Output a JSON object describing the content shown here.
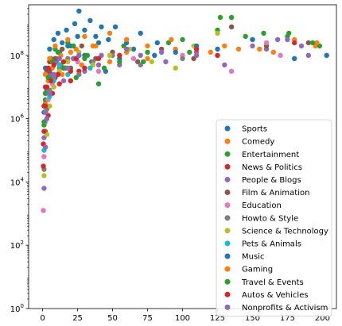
{
  "chart_data": {
    "type": "scatter",
    "title": "",
    "xlabel": "",
    "ylabel": "",
    "xlim": [
      -10,
      210
    ],
    "ylim_log10": [
      0,
      9.6
    ],
    "yscale": "log",
    "x_ticks": [
      0,
      25,
      50,
      75,
      100,
      125,
      150,
      175,
      200
    ],
    "x_tick_labels": [
      "0",
      "25",
      "50",
      "75",
      "100",
      "125",
      "150",
      "175",
      "200"
    ],
    "y_ticks_log10": [
      0,
      2,
      4,
      6,
      8
    ],
    "y_tick_labels": [
      {
        "base": "10",
        "exp": "0"
      },
      {
        "base": "10",
        "exp": "2"
      },
      {
        "base": "10",
        "exp": "4"
      },
      {
        "base": "10",
        "exp": "6"
      },
      {
        "base": "10",
        "exp": "8"
      }
    ],
    "grid": false,
    "legend_position": "lower-right",
    "series": [
      {
        "name": "Sports",
        "color": "#1f77b4",
        "points": [
          [
            1,
            6.2
          ],
          [
            3,
            6.9
          ],
          [
            5,
            7.3
          ],
          [
            8,
            7.7
          ],
          [
            12,
            8.1
          ],
          [
            15,
            7.6
          ],
          [
            18,
            8.3
          ],
          [
            22,
            7.9
          ],
          [
            25,
            8.6
          ],
          [
            30,
            8.0
          ],
          [
            35,
            7.8
          ],
          [
            40,
            8.4
          ],
          [
            45,
            7.5
          ],
          [
            55,
            7.9
          ],
          [
            65,
            8.2
          ],
          [
            80,
            8.0
          ]
        ]
      },
      {
        "name": "Comedy",
        "color": "#ff7f0e",
        "points": [
          [
            2,
            6.5
          ],
          [
            4,
            7.2
          ],
          [
            7,
            7.6
          ],
          [
            10,
            7.9
          ],
          [
            14,
            7.4
          ],
          [
            20,
            8.1
          ],
          [
            28,
            7.7
          ],
          [
            36,
            8.3
          ],
          [
            48,
            7.8
          ],
          [
            60,
            8.1
          ],
          [
            75,
            7.9
          ],
          [
            95,
            8.2
          ],
          [
            120,
            8.1
          ],
          [
            140,
            8.2
          ],
          [
            165,
            8.1
          ],
          [
            195,
            8.3
          ]
        ]
      },
      {
        "name": "Entertainment",
        "color": "#2ca02c",
        "points": [
          [
            1,
            5.8
          ],
          [
            2,
            6.6
          ],
          [
            4,
            7.4
          ],
          [
            6,
            7.9
          ],
          [
            9,
            8.2
          ],
          [
            13,
            7.7
          ],
          [
            18,
            8.4
          ],
          [
            24,
            7.3
          ],
          [
            32,
            8.0
          ],
          [
            44,
            7.6
          ],
          [
            58,
            8.3
          ],
          [
            72,
            7.8
          ],
          [
            90,
            8.4
          ],
          [
            105,
            8.1
          ],
          [
            125,
            8.8
          ],
          [
            150,
            8.5
          ],
          [
            175,
            8.6
          ],
          [
            198,
            8.3
          ]
        ]
      },
      {
        "name": "News & Politics",
        "color": "#d62728",
        "points": [
          [
            0.5,
            5.2
          ],
          [
            1,
            6.4
          ],
          [
            2,
            7.0
          ],
          [
            3,
            7.5
          ],
          [
            4,
            6.1
          ],
          [
            5,
            7.8
          ],
          [
            7,
            6.8
          ],
          [
            9,
            7.3
          ],
          [
            12,
            7.1
          ],
          [
            16,
            7.6
          ],
          [
            20,
            7.2
          ],
          [
            26,
            7.5
          ]
        ]
      },
      {
        "name": "People & Blogs",
        "color": "#9467bd",
        "points": [
          [
            1,
            5.4
          ],
          [
            2,
            6.2
          ],
          [
            4,
            6.9
          ],
          [
            6,
            7.4
          ],
          [
            10,
            7.8
          ],
          [
            15,
            7.2
          ],
          [
            22,
            7.9
          ],
          [
            30,
            7.5
          ],
          [
            42,
            8.0
          ],
          [
            55,
            7.7
          ],
          [
            70,
            8.0
          ],
          [
            88,
            7.8
          ],
          [
            110,
            8.1
          ],
          [
            130,
            7.7
          ],
          [
            160,
            8.2
          ],
          [
            185,
            8.3
          ]
        ]
      },
      {
        "name": "Film & Animation",
        "color": "#8c564b",
        "points": [
          [
            2,
            6.8
          ],
          [
            5,
            7.5
          ],
          [
            9,
            7.9
          ],
          [
            14,
            8.2
          ],
          [
            20,
            7.6
          ],
          [
            28,
            8.3
          ],
          [
            38,
            7.9
          ],
          [
            50,
            8.1
          ],
          [
            68,
            7.8
          ],
          [
            85,
            8.2
          ],
          [
            108,
            7.9
          ],
          [
            135,
            8.9
          ],
          [
            160,
            8.3
          ],
          [
            190,
            8.4
          ]
        ]
      },
      {
        "name": "Education",
        "color": "#e377c2",
        "points": [
          [
            0.5,
            3.1
          ],
          [
            1,
            4.8
          ],
          [
            2,
            5.9
          ],
          [
            4,
            6.6
          ],
          [
            7,
            7.1
          ],
          [
            11,
            7.4
          ],
          [
            17,
            7.6
          ],
          [
            25,
            7.8
          ],
          [
            40,
            7.5
          ],
          [
            65,
            7.9
          ],
          [
            100,
            8.0
          ],
          [
            135,
            7.5
          ],
          [
            160,
            8.4
          ],
          [
            170,
            8.0
          ]
        ]
      },
      {
        "name": "Howto & Style",
        "color": "#7f7f7f",
        "points": [
          [
            1,
            4.4
          ],
          [
            2,
            5.6
          ],
          [
            3,
            6.3
          ],
          [
            5,
            6.9
          ],
          [
            8,
            7.3
          ],
          [
            12,
            7.6
          ],
          [
            18,
            7.9
          ],
          [
            26,
            7.4
          ],
          [
            36,
            7.8
          ],
          [
            50,
            8.0
          ],
          [
            70,
            7.7
          ],
          [
            100,
            7.9
          ]
        ]
      },
      {
        "name": "Science & Technology",
        "color": "#bcbd22",
        "points": [
          [
            1,
            4.2
          ],
          [
            3,
            5.5
          ],
          [
            5,
            6.4
          ],
          [
            8,
            7.0
          ],
          [
            12,
            7.5
          ],
          [
            18,
            7.8
          ],
          [
            26,
            8.1
          ],
          [
            36,
            7.7
          ],
          [
            48,
            8.0
          ],
          [
            62,
            8.2
          ],
          [
            78,
            7.8
          ],
          [
            95,
            7.6
          ],
          [
            108,
            8.3
          ],
          [
            125,
            8.7
          ]
        ]
      },
      {
        "name": "Pets & Animals",
        "color": "#17becf",
        "points": [
          [
            1,
            5.0
          ],
          [
            3,
            6.0
          ],
          [
            5,
            6.7
          ],
          [
            8,
            7.2
          ],
          [
            12,
            7.7
          ],
          [
            18,
            7.4
          ],
          [
            26,
            8.0
          ],
          [
            34,
            7.6
          ]
        ]
      },
      {
        "name": "Music",
        "color": "#1f77b4",
        "points": [
          [
            2,
            7.6
          ],
          [
            5,
            8.2
          ],
          [
            8,
            8.5
          ],
          [
            11,
            8.7
          ],
          [
            14,
            8.4
          ],
          [
            17,
            8.8
          ],
          [
            20,
            8.3
          ],
          [
            23,
            9.0
          ],
          [
            26,
            9.4
          ],
          [
            30,
            8.8
          ],
          [
            34,
            9.1
          ],
          [
            38,
            8.6
          ],
          [
            42,
            8.9
          ],
          [
            47,
            8.5
          ],
          [
            52,
            8.9
          ],
          [
            60,
            8.4
          ],
          [
            70,
            8.7
          ],
          [
            82,
            8.4
          ],
          [
            95,
            8.1
          ],
          [
            110,
            8.3
          ],
          [
            125,
            8.2
          ],
          [
            150,
            8.5
          ],
          [
            180,
            7.9
          ],
          [
            203,
            8.0
          ]
        ]
      },
      {
        "name": "Gaming",
        "color": "#ff7f0e",
        "points": [
          [
            2,
            7.4
          ],
          [
            5,
            7.9
          ],
          [
            9,
            8.3
          ],
          [
            13,
            8.0
          ],
          [
            18,
            8.5
          ],
          [
            24,
            8.2
          ],
          [
            30,
            8.6
          ],
          [
            38,
            8.3
          ],
          [
            48,
            8.7
          ],
          [
            60,
            8.5
          ],
          [
            75,
            8.3
          ],
          [
            92,
            8.5
          ],
          [
            110,
            8.2
          ],
          [
            130,
            8.3
          ],
          [
            155,
            8.2
          ],
          [
            180,
            8.5
          ],
          [
            196,
            8.4
          ]
        ]
      },
      {
        "name": "Travel & Events",
        "color": "#2ca02c",
        "points": [
          [
            1,
            5.9
          ],
          [
            2,
            6.8
          ],
          [
            4,
            7.3
          ],
          [
            7,
            7.8
          ],
          [
            11,
            8.1
          ],
          [
            16,
            7.6
          ],
          [
            22,
            8.3
          ],
          [
            30,
            7.9
          ],
          [
            40,
            7.1
          ],
          [
            55,
            7.8
          ],
          [
            75,
            8.1
          ],
          [
            100,
            8.5
          ],
          [
            127,
            9.2
          ],
          [
            135,
            9.2
          ],
          [
            145,
            8.6
          ],
          [
            158,
            8.7
          ],
          [
            176,
            8.7
          ],
          [
            193,
            8.4
          ]
        ]
      },
      {
        "name": "Autos & Vehicles",
        "color": "#d62728",
        "points": [
          [
            0.5,
            4.5
          ],
          [
            1,
            5.6
          ],
          [
            2,
            6.4
          ],
          [
            3,
            7.0
          ],
          [
            4,
            7.6
          ],
          [
            6,
            7.2
          ],
          [
            8,
            7.7
          ],
          [
            11,
            7.4
          ],
          [
            15,
            7.8
          ],
          [
            20,
            7.5
          ],
          [
            24,
            7.9
          ],
          [
            30,
            7.6
          ],
          [
            40,
            7.9
          ],
          [
            55,
            8.0
          ],
          [
            110,
            8.2
          ],
          [
            125,
            8.0
          ],
          [
            180,
            8.4
          ]
        ]
      },
      {
        "name": "Nonprofits & Activism",
        "color": "#9467bd",
        "points": [
          [
            1,
            3.8
          ],
          [
            2,
            5.1
          ],
          [
            3,
            6.0
          ],
          [
            5,
            6.8
          ],
          [
            8,
            7.4
          ],
          [
            12,
            7.9
          ],
          [
            18,
            7.6
          ],
          [
            26,
            8.0
          ],
          [
            40,
            7.7
          ],
          [
            60,
            8.2
          ],
          [
            85,
            8.1
          ],
          [
            110,
            8.0
          ],
          [
            150,
            8.3
          ],
          [
            168,
            8.5
          ],
          [
            175,
            8.5
          ],
          [
            190,
            8.0
          ]
        ]
      }
    ]
  }
}
